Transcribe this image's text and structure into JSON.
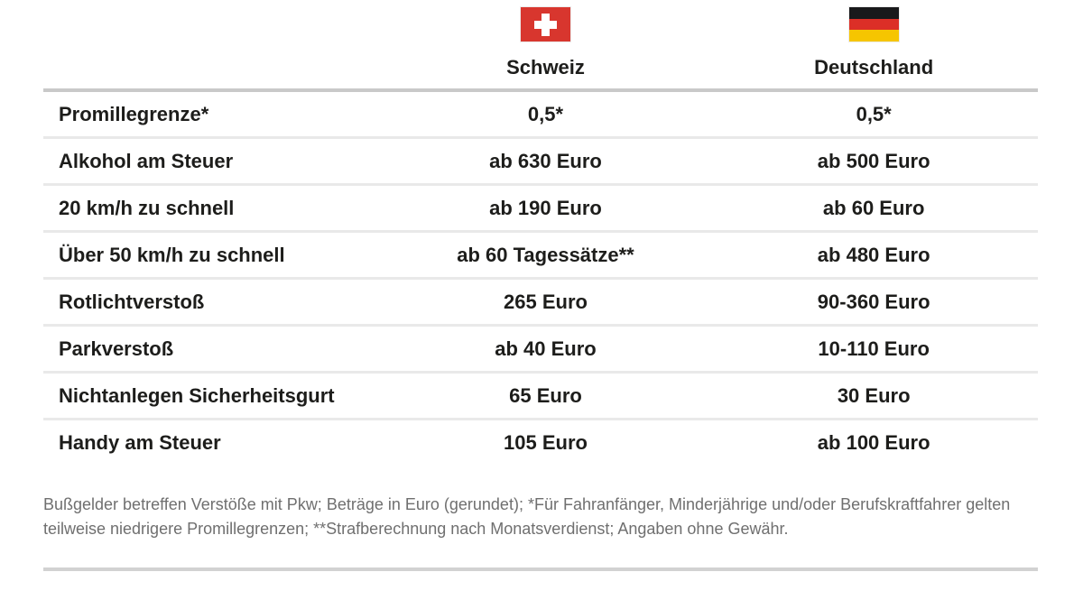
{
  "header": {
    "col_schweiz": "Schweiz",
    "col_deutschland": "Deutschland",
    "flag_schweiz_icon": "switzerland-flag",
    "flag_deutschland_icon": "germany-flag"
  },
  "rows": [
    {
      "label": "Promillegrenze*",
      "schweiz": "0,5*",
      "deutschland": "0,5*"
    },
    {
      "label": "Alkohol am Steuer",
      "schweiz": "ab 630 Euro",
      "deutschland": "ab 500 Euro"
    },
    {
      "label": "20 km/h zu schnell",
      "schweiz": "ab 190 Euro",
      "deutschland": "ab 60 Euro"
    },
    {
      "label": "Über 50 km/h zu schnell",
      "schweiz": "ab 60 Tagessätze**",
      "deutschland": "ab 480 Euro"
    },
    {
      "label": "Rotlichtverstoß",
      "schweiz": "265 Euro",
      "deutschland": "90-360 Euro"
    },
    {
      "label": "Parkverstoß",
      "schweiz": "ab 40 Euro",
      "deutschland": "10-110 Euro"
    },
    {
      "label": "Nichtanlegen Sicherheitsgurt",
      "schweiz": "65 Euro",
      "deutschland": "30 Euro"
    },
    {
      "label": "Handy am Steuer",
      "schweiz": "105 Euro",
      "deutschland": "ab 100 Euro"
    }
  ],
  "footnote": "Bußgelder betreffen Verstöße mit Pkw; Beträge in Euro (gerundet); *Für Fahranfänger, Minderjährige und/oder Berufskraftfahrer gelten teilweise niedrigere Promillegrenzen; **Strafberechnung nach Monatsverdienst; Angaben ohne Gewähr.",
  "colors": {
    "text_dark": "#1d1d1b",
    "text_gray": "#6f6f6f",
    "header_rule": "#c9c9c9",
    "row_rule": "#e9e9e9",
    "bottom_rule": "#d2d2d2",
    "swiss_flag_red": "#d8362e",
    "german_flag_black": "#19191b",
    "german_flag_red": "#dc2f27",
    "german_flag_gold": "#f6c500"
  }
}
